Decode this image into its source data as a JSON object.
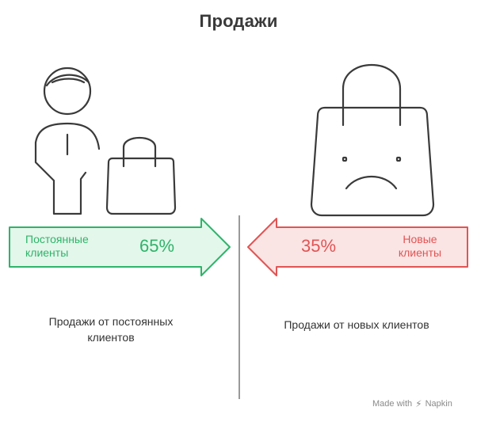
{
  "title": "Продажи",
  "left": {
    "label": "Постоянные клиенты",
    "percent": "65%",
    "description": "Продажи от постоянных клиентов",
    "color": "#2fb36b",
    "fill": "#e3f7ea"
  },
  "right": {
    "label": "Новые клиенты",
    "percent": "35%",
    "description": "Продажи от новых клиентов",
    "color": "#e15454",
    "fill": "#fbe4e4"
  },
  "icons": {
    "person": "person-icon",
    "bag_small": "shopping-bag-icon",
    "bag_sad": "sad-shopping-bag-icon"
  },
  "footer": {
    "made_with": "Made with",
    "brand": "Napkin"
  }
}
